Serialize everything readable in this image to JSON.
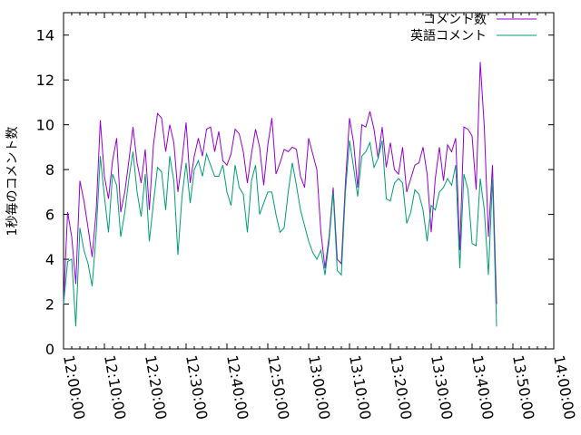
{
  "chart_data": {
    "type": "line",
    "title": "",
    "xlabel": "",
    "ylabel": "1秒毎のコメント数",
    "xlim": [
      "12:00:00",
      "14:00:00"
    ],
    "ylim": [
      0,
      15
    ],
    "yticks": [
      0,
      2,
      4,
      6,
      8,
      10,
      12,
      14
    ],
    "xticks": [
      "12:00:00",
      "12:10:00",
      "12:20:00",
      "12:30:00",
      "12:40:00",
      "12:50:00",
      "13:00:00",
      "13:10:00",
      "13:20:00",
      "13:30:00",
      "13:40:00",
      "13:50:00",
      "14:00:00"
    ],
    "grid": false,
    "legend_position": "top-right",
    "series": [
      {
        "name": "コメント数",
        "color": "#9400d3",
        "points": [
          [
            "12:00:00",
            2.1
          ],
          [
            "12:01:00",
            6.1
          ],
          [
            "12:02:00",
            5.0
          ],
          [
            "12:03:00",
            2.9
          ],
          [
            "12:04:00",
            7.5
          ],
          [
            "12:05:00",
            6.6
          ],
          [
            "12:06:00",
            5.4
          ],
          [
            "12:07:00",
            4.1
          ],
          [
            "12:08:00",
            6.2
          ],
          [
            "12:09:00",
            10.2
          ],
          [
            "12:10:00",
            7.7
          ],
          [
            "12:11:00",
            6.7
          ],
          [
            "12:12:00",
            8.4
          ],
          [
            "12:13:00",
            9.4
          ],
          [
            "12:14:00",
            6.1
          ],
          [
            "12:15:00",
            7.0
          ],
          [
            "12:16:00",
            8.4
          ],
          [
            "12:17:00",
            9.9
          ],
          [
            "12:18:00",
            8.3
          ],
          [
            "12:19:00",
            7.4
          ],
          [
            "12:20:00",
            8.9
          ],
          [
            "12:21:00",
            6.2
          ],
          [
            "12:22:00",
            9.1
          ],
          [
            "12:23:00",
            10.5
          ],
          [
            "12:24:00",
            10.3
          ],
          [
            "12:25:00",
            8.8
          ],
          [
            "12:26:00",
            10.0
          ],
          [
            "12:27:00",
            9.2
          ],
          [
            "12:28:00",
            7.0
          ],
          [
            "12:29:00",
            8.4
          ],
          [
            "12:30:00",
            10.1
          ],
          [
            "12:31:00",
            7.4
          ],
          [
            "12:32:00",
            8.6
          ],
          [
            "12:33:00",
            9.4
          ],
          [
            "12:34:00",
            8.6
          ],
          [
            "12:35:00",
            9.8
          ],
          [
            "12:36:00",
            9.9
          ],
          [
            "12:37:00",
            8.8
          ],
          [
            "12:38:00",
            9.7
          ],
          [
            "12:39:00",
            8.4
          ],
          [
            "12:40:00",
            8.2
          ],
          [
            "12:41:00",
            8.7
          ],
          [
            "12:42:00",
            9.8
          ],
          [
            "12:43:00",
            9.6
          ],
          [
            "12:44:00",
            8.8
          ],
          [
            "12:45:00",
            7.4
          ],
          [
            "12:46:00",
            8.7
          ],
          [
            "12:47:00",
            9.8
          ],
          [
            "12:48:00",
            9.0
          ],
          [
            "12:49:00",
            7.3
          ],
          [
            "12:50:00",
            9.1
          ],
          [
            "12:51:00",
            10.3
          ],
          [
            "12:52:00",
            7.8
          ],
          [
            "12:53:00",
            8.3
          ],
          [
            "12:54:00",
            8.9
          ],
          [
            "12:55:00",
            8.8
          ],
          [
            "12:56:00",
            9.0
          ],
          [
            "12:57:00",
            8.9
          ],
          [
            "12:58:00",
            7.7
          ],
          [
            "12:59:00",
            7.2
          ],
          [
            "13:00:00",
            9.4
          ],
          [
            "13:01:00",
            8.7
          ],
          [
            "13:02:00",
            8.0
          ],
          [
            "13:03:00",
            5.2
          ],
          [
            "13:04:00",
            3.6
          ],
          [
            "13:05:00",
            5.0
          ],
          [
            "13:06:00",
            7.2
          ],
          [
            "13:07:00",
            4.0
          ],
          [
            "13:08:00",
            3.8
          ],
          [
            "13:09:00",
            7.4
          ],
          [
            "13:10:00",
            10.3
          ],
          [
            "13:11:00",
            9.2
          ],
          [
            "13:12:00",
            7.2
          ],
          [
            "13:13:00",
            10.0
          ],
          [
            "13:14:00",
            9.9
          ],
          [
            "13:15:00",
            10.6
          ],
          [
            "13:16:00",
            9.8
          ],
          [
            "13:17:00",
            8.5
          ],
          [
            "13:18:00",
            9.9
          ],
          [
            "13:19:00",
            8.1
          ],
          [
            "13:20:00",
            9.2
          ],
          [
            "13:21:00",
            8.0
          ],
          [
            "13:22:00",
            7.8
          ],
          [
            "13:23:00",
            9.0
          ],
          [
            "13:24:00",
            7.0
          ],
          [
            "13:25:00",
            7.6
          ],
          [
            "13:26:00",
            8.2
          ],
          [
            "13:27:00",
            8.3
          ],
          [
            "13:28:00",
            9.0
          ],
          [
            "13:29:00",
            7.8
          ],
          [
            "13:30:00",
            5.2
          ],
          [
            "13:31:00",
            7.6
          ],
          [
            "13:32:00",
            9.0
          ],
          [
            "13:33:00",
            7.5
          ],
          [
            "13:34:00",
            9.1
          ],
          [
            "13:35:00",
            8.8
          ],
          [
            "13:36:00",
            9.4
          ],
          [
            "13:37:00",
            4.4
          ],
          [
            "13:38:00",
            9.9
          ],
          [
            "13:39:00",
            9.8
          ],
          [
            "13:40:00",
            9.5
          ],
          [
            "13:41:00",
            7.1
          ],
          [
            "13:42:00",
            12.8
          ],
          [
            "13:43:00",
            9.9
          ],
          [
            "13:44:00",
            5.0
          ],
          [
            "13:45:00",
            8.2
          ],
          [
            "13:46:00",
            2.0
          ]
        ]
      },
      {
        "name": "英語コメント",
        "color": "#009e73",
        "points": [
          [
            "12:00:00",
            2.0
          ],
          [
            "12:01:00",
            3.9
          ],
          [
            "12:02:00",
            4.0
          ],
          [
            "12:03:00",
            1.0
          ],
          [
            "12:04:00",
            5.4
          ],
          [
            "12:05:00",
            4.4
          ],
          [
            "12:06:00",
            3.8
          ],
          [
            "12:07:00",
            2.8
          ],
          [
            "12:08:00",
            5.2
          ],
          [
            "12:09:00",
            8.6
          ],
          [
            "12:10:00",
            6.8
          ],
          [
            "12:11:00",
            5.2
          ],
          [
            "12:12:00",
            7.8
          ],
          [
            "12:13:00",
            7.3
          ],
          [
            "12:14:00",
            5.0
          ],
          [
            "12:15:00",
            6.1
          ],
          [
            "12:16:00",
            7.6
          ],
          [
            "12:17:00",
            8.8
          ],
          [
            "12:18:00",
            7.0
          ],
          [
            "12:19:00",
            5.9
          ],
          [
            "12:20:00",
            7.8
          ],
          [
            "12:21:00",
            4.8
          ],
          [
            "12:22:00",
            6.5
          ],
          [
            "12:23:00",
            8.1
          ],
          [
            "12:24:00",
            7.9
          ],
          [
            "12:25:00",
            6.2
          ],
          [
            "12:26:00",
            8.6
          ],
          [
            "12:27:00",
            7.5
          ],
          [
            "12:28:00",
            4.2
          ],
          [
            "12:29:00",
            6.8
          ],
          [
            "12:30:00",
            8.3
          ],
          [
            "12:31:00",
            6.5
          ],
          [
            "12:32:00",
            8.0
          ],
          [
            "12:33:00",
            8.4
          ],
          [
            "12:34:00",
            7.7
          ],
          [
            "12:35:00",
            8.7
          ],
          [
            "12:36:00",
            8.2
          ],
          [
            "12:37:00",
            7.7
          ],
          [
            "12:38:00",
            7.7
          ],
          [
            "12:39:00",
            8.2
          ],
          [
            "12:40:00",
            7.0
          ],
          [
            "12:41:00",
            6.4
          ],
          [
            "12:42:00",
            8.2
          ],
          [
            "12:43:00",
            7.2
          ],
          [
            "12:44:00",
            6.9
          ],
          [
            "12:45:00",
            5.2
          ],
          [
            "12:46:00",
            7.5
          ],
          [
            "12:47:00",
            8.2
          ],
          [
            "12:48:00",
            6.0
          ],
          [
            "12:49:00",
            6.5
          ],
          [
            "12:50:00",
            7.0
          ],
          [
            "12:51:00",
            7.0
          ],
          [
            "12:52:00",
            6.0
          ],
          [
            "12:53:00",
            5.2
          ],
          [
            "12:54:00",
            5.4
          ],
          [
            "12:55:00",
            7.0
          ],
          [
            "12:56:00",
            8.3
          ],
          [
            "12:57:00",
            7.3
          ],
          [
            "12:58:00",
            6.2
          ],
          [
            "12:59:00",
            5.5
          ],
          [
            "13:00:00",
            4.8
          ],
          [
            "13:01:00",
            4.3
          ],
          [
            "13:02:00",
            4.0
          ],
          [
            "13:03:00",
            4.4
          ],
          [
            "13:04:00",
            3.3
          ],
          [
            "13:05:00",
            4.8
          ],
          [
            "13:06:00",
            7.0
          ],
          [
            "13:07:00",
            3.5
          ],
          [
            "13:08:00",
            3.3
          ],
          [
            "13:09:00",
            7.0
          ],
          [
            "13:10:00",
            9.3
          ],
          [
            "13:11:00",
            8.1
          ],
          [
            "13:12:00",
            6.8
          ],
          [
            "13:13:00",
            8.6
          ],
          [
            "13:14:00",
            8.8
          ],
          [
            "13:15:00",
            9.2
          ],
          [
            "13:16:00",
            8.1
          ],
          [
            "13:17:00",
            8.5
          ],
          [
            "13:18:00",
            9.3
          ],
          [
            "13:19:00",
            6.7
          ],
          [
            "13:20:00",
            6.6
          ],
          [
            "13:21:00",
            7.4
          ],
          [
            "13:22:00",
            7.6
          ],
          [
            "13:23:00",
            7.4
          ],
          [
            "13:24:00",
            5.6
          ],
          [
            "13:25:00",
            6.1
          ],
          [
            "13:26:00",
            7.1
          ],
          [
            "13:27:00",
            6.9
          ],
          [
            "13:28:00",
            6.2
          ],
          [
            "13:29:00",
            4.8
          ],
          [
            "13:30:00",
            6.4
          ],
          [
            "13:31:00",
            6.2
          ],
          [
            "13:32:00",
            7.0
          ],
          [
            "13:33:00",
            7.2
          ],
          [
            "13:34:00",
            7.6
          ],
          [
            "13:35:00",
            7.3
          ],
          [
            "13:36:00",
            8.2
          ],
          [
            "13:37:00",
            3.6
          ],
          [
            "13:38:00",
            7.8
          ],
          [
            "13:39:00",
            7.1
          ],
          [
            "13:40:00",
            4.7
          ],
          [
            "13:41:00",
            4.6
          ],
          [
            "13:42:00",
            7.6
          ],
          [
            "13:43:00",
            6.2
          ],
          [
            "13:44:00",
            3.3
          ],
          [
            "13:45:00",
            7.6
          ],
          [
            "13:46:00",
            1.0
          ]
        ]
      }
    ]
  }
}
